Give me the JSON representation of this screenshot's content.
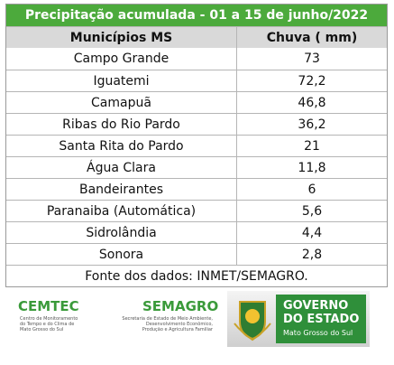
{
  "title": "Precipitação acumulada -  01 a 15 de junho/2022",
  "table": {
    "header": [
      "Municípios MS",
      "Chuva ( mm)"
    ],
    "rows": [
      [
        "Campo Grande",
        "73"
      ],
      [
        "Iguatemi",
        "72,2"
      ],
      [
        "Camapuã",
        "46,8"
      ],
      [
        "Ribas do Rio Pardo",
        "36,2"
      ],
      [
        "Santa Rita do Pardo",
        "21"
      ],
      [
        "Água Clara",
        "11,8"
      ],
      [
        "Bandeirantes",
        "6"
      ],
      [
        "Paranaiba (Automática)",
        "5,6"
      ],
      [
        "Sidrolândia",
        "4,4"
      ],
      [
        "Sonora",
        "2,8"
      ]
    ],
    "source": "Fonte dos dados: INMET/SEMAGRO."
  },
  "logos": {
    "cemtec": {
      "name": "CEMTEC",
      "subtitle": [
        "Centro de Monitoramento",
        "do Tempo e do Clima de",
        "Mato Grosso do Sul"
      ]
    },
    "semagro": {
      "name": "SEMAGRO",
      "subtitle": [
        "Secretaria de Estado de Meio Ambiente,",
        "Desenvolvimento Econômico,",
        "Produção e Agricultura Familiar"
      ]
    },
    "governo": {
      "lines": [
        "GOVERNO",
        "DO ESTADO"
      ],
      "state": "Mato Grosso do Sul"
    }
  }
}
